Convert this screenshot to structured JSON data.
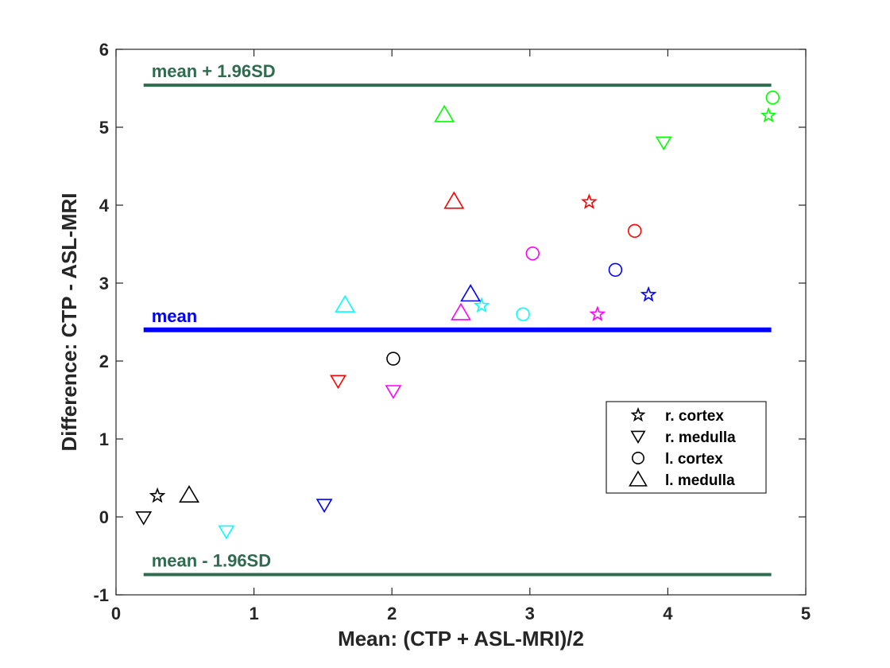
{
  "chart_data": {
    "type": "scatter",
    "title": "",
    "xlabel": "Mean: (CTP + ASL-MRI)/2",
    "ylabel": "Difference: CTP - ASL-MRI",
    "xlim": [
      0,
      5
    ],
    "ylim": [
      -1,
      6
    ],
    "xticks": [
      0,
      1,
      2,
      3,
      4,
      5
    ],
    "yticks": [
      -1,
      0,
      1,
      2,
      3,
      4,
      5,
      6
    ],
    "grid": false,
    "colors": {
      "limits": "#2e6b4f",
      "mean": "#0000ff",
      "axis": "#262626"
    },
    "reference_lines": [
      {
        "name": "upper",
        "label": "mean + 1.96SD",
        "y": 5.54,
        "x_range": [
          0.2,
          4.75
        ],
        "color": "#2e6b4f"
      },
      {
        "name": "mean",
        "label": "mean",
        "y": 2.4,
        "x_range": [
          0.2,
          4.75
        ],
        "color": "#0000ff"
      },
      {
        "name": "lower",
        "label": "mean - 1.96SD",
        "y": -0.74,
        "x_range": [
          0.2,
          4.75
        ],
        "color": "#2e6b4f"
      }
    ],
    "legend": {
      "position": "lower-right",
      "entries": [
        {
          "marker": "star",
          "label": "r. cortex"
        },
        {
          "marker": "triangle-down",
          "label": "r. medulla"
        },
        {
          "marker": "circle",
          "label": "l. cortex"
        },
        {
          "marker": "triangle-up",
          "label": "l. medulla"
        }
      ]
    },
    "series": [
      {
        "name": "r. cortex",
        "marker": "star",
        "points": [
          {
            "x": 0.3,
            "y": 0.27,
            "color": "#000000"
          },
          {
            "x": 2.65,
            "y": 2.71,
            "color": "#00ffff"
          },
          {
            "x": 3.43,
            "y": 4.04,
            "color": "#ff0000"
          },
          {
            "x": 3.49,
            "y": 2.6,
            "color": "#ff00ff"
          },
          {
            "x": 3.86,
            "y": 2.85,
            "color": "#0000ff"
          },
          {
            "x": 4.73,
            "y": 5.15,
            "color": "#00ff00"
          }
        ]
      },
      {
        "name": "r. medulla",
        "marker": "triangle-down",
        "points": [
          {
            "x": 0.2,
            "y": -0.01,
            "color": "#000000"
          },
          {
            "x": 0.8,
            "y": -0.19,
            "color": "#00ffff"
          },
          {
            "x": 1.51,
            "y": 0.15,
            "color": "#0000ff"
          },
          {
            "x": 1.61,
            "y": 1.74,
            "color": "#ff0000"
          },
          {
            "x": 2.01,
            "y": 1.61,
            "color": "#ff00ff"
          },
          {
            "x": 3.97,
            "y": 4.8,
            "color": "#00ff00"
          }
        ]
      },
      {
        "name": "l. cortex",
        "marker": "circle",
        "points": [
          {
            "x": 2.01,
            "y": 2.03,
            "color": "#000000"
          },
          {
            "x": 2.95,
            "y": 2.6,
            "color": "#00ffff"
          },
          {
            "x": 3.02,
            "y": 3.38,
            "color": "#ff00ff"
          },
          {
            "x": 3.62,
            "y": 3.17,
            "color": "#0000ff"
          },
          {
            "x": 3.76,
            "y": 3.67,
            "color": "#ff0000"
          },
          {
            "x": 4.76,
            "y": 5.38,
            "color": "#00ff00"
          }
        ]
      },
      {
        "name": "l. medulla",
        "marker": "triangle-up",
        "points": [
          {
            "x": 0.53,
            "y": 0.28,
            "color": "#000000"
          },
          {
            "x": 1.66,
            "y": 2.72,
            "color": "#00ffff"
          },
          {
            "x": 2.38,
            "y": 5.16,
            "color": "#00ff00"
          },
          {
            "x": 2.45,
            "y": 4.05,
            "color": "#ff0000"
          },
          {
            "x": 2.5,
            "y": 2.62,
            "color": "#ff00ff"
          },
          {
            "x": 2.57,
            "y": 2.86,
            "color": "#0000ff"
          }
        ]
      }
    ]
  }
}
